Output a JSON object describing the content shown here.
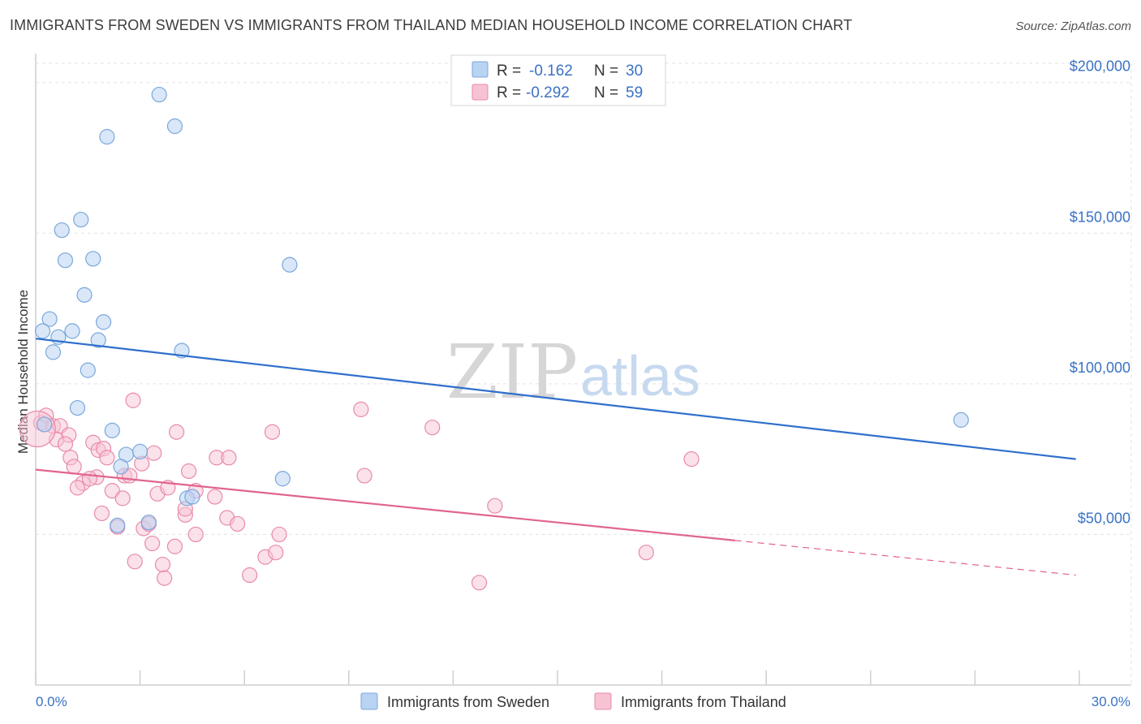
{
  "title": "IMMIGRANTS FROM SWEDEN VS IMMIGRANTS FROM THAILAND MEDIAN HOUSEHOLD INCOME CORRELATION CHART",
  "source": "Source: ZipAtlas.com",
  "watermark": {
    "zip": "ZIP",
    "atlas": "atlas"
  },
  "colors": {
    "sweden_fill": "#b9d3f2",
    "sweden_stroke": "#7aa7dc",
    "sweden_line": "#2f6fcc",
    "thailand_fill": "#f7c3d3",
    "thailand_stroke": "#e88aaa",
    "thailand_line": "#e0648f",
    "tick_text": "#3a72c4",
    "grid": "#e3e3e3"
  },
  "legend": {
    "r_label": "R =",
    "n_label": "N =",
    "sweden": {
      "r": "-0.162",
      "n": "30"
    },
    "thailand": {
      "r": "-0.292",
      "n": "59"
    }
  },
  "chart_data": {
    "type": "scatter",
    "title": "IMMIGRANTS FROM SWEDEN VS IMMIGRANTS FROM THAILAND MEDIAN HOUSEHOLD INCOME CORRELATION CHART",
    "xlabel": "",
    "ylabel": "Median Household Income",
    "xlim": [
      0,
      30
    ],
    "ylim": [
      0,
      208000
    ],
    "x_tick_labels": [
      "0.0%",
      "30.0%"
    ],
    "y_ticks": [
      50000,
      100000,
      150000,
      200000
    ],
    "y_tick_labels": [
      "$50,000",
      "$100,000",
      "$150,000",
      "$200,000"
    ],
    "grid": true,
    "legend_position": "top-center",
    "series": [
      {
        "name": "Immigrants from Sweden",
        "points": [
          [
            3.55,
            196000
          ],
          [
            2.05,
            182000
          ],
          [
            4.0,
            185500
          ],
          [
            1.3,
            154500
          ],
          [
            0.75,
            151000
          ],
          [
            0.85,
            141000
          ],
          [
            1.65,
            141500
          ],
          [
            7.3,
            139500
          ],
          [
            1.4,
            129500
          ],
          [
            0.4,
            121500
          ],
          [
            1.95,
            120500
          ],
          [
            0.2,
            117500
          ],
          [
            1.05,
            117500
          ],
          [
            0.65,
            115500
          ],
          [
            1.8,
            114500
          ],
          [
            0.5,
            110500
          ],
          [
            4.2,
            111000
          ],
          [
            1.5,
            104500
          ],
          [
            1.2,
            92000
          ],
          [
            26.6,
            88000
          ],
          [
            0.25,
            86500
          ],
          [
            2.2,
            84500
          ],
          [
            3.0,
            77500
          ],
          [
            2.6,
            76500
          ],
          [
            2.45,
            72500
          ],
          [
            7.1,
            68500
          ],
          [
            4.35,
            62000
          ],
          [
            4.5,
            62500
          ],
          [
            2.35,
            53000
          ],
          [
            3.25,
            54000
          ]
        ],
        "trend": {
          "x0": 0,
          "y0": 115000,
          "x1": 29.9,
          "y1": 75000
        }
      },
      {
        "name": "Immigrants from Thailand",
        "points": [
          [
            0.15,
            87000
          ],
          [
            0.3,
            89500
          ],
          [
            0.5,
            86000
          ],
          [
            0.7,
            86000
          ],
          [
            0.95,
            83000
          ],
          [
            0.6,
            81500
          ],
          [
            0.85,
            80000
          ],
          [
            1.65,
            80500
          ],
          [
            1.8,
            78000
          ],
          [
            1.95,
            78500
          ],
          [
            2.8,
            94500
          ],
          [
            4.05,
            84000
          ],
          [
            3.4,
            77000
          ],
          [
            3.05,
            73500
          ],
          [
            1.0,
            75500
          ],
          [
            1.1,
            72500
          ],
          [
            2.05,
            75500
          ],
          [
            2.55,
            69500
          ],
          [
            2.7,
            69500
          ],
          [
            1.75,
            69000
          ],
          [
            1.35,
            67000
          ],
          [
            1.55,
            68500
          ],
          [
            1.2,
            65500
          ],
          [
            2.2,
            64500
          ],
          [
            3.5,
            63500
          ],
          [
            3.8,
            65500
          ],
          [
            4.6,
            64500
          ],
          [
            4.4,
            71000
          ],
          [
            5.2,
            75500
          ],
          [
            5.55,
            75500
          ],
          [
            5.15,
            62500
          ],
          [
            6.8,
            84000
          ],
          [
            9.35,
            91500
          ],
          [
            11.4,
            85500
          ],
          [
            9.45,
            69500
          ],
          [
            13.2,
            59500
          ],
          [
            18.85,
            75000
          ],
          [
            1.9,
            57000
          ],
          [
            4.3,
            56500
          ],
          [
            5.5,
            55500
          ],
          [
            5.8,
            53500
          ],
          [
            2.35,
            52500
          ],
          [
            3.1,
            52000
          ],
          [
            3.25,
            53500
          ],
          [
            4.6,
            50000
          ],
          [
            7.0,
            50000
          ],
          [
            3.35,
            47000
          ],
          [
            4.0,
            46000
          ],
          [
            6.6,
            42500
          ],
          [
            6.9,
            44000
          ],
          [
            2.85,
            41000
          ],
          [
            3.65,
            40000
          ],
          [
            3.7,
            35500
          ],
          [
            6.15,
            36500
          ],
          [
            12.75,
            34000
          ],
          [
            17.55,
            44000
          ],
          [
            0.05,
            85000
          ],
          [
            4.3,
            58500
          ],
          [
            2.5,
            62000
          ]
        ],
        "trend": {
          "x0": 0,
          "y0": 71500,
          "x1": 20.1,
          "y1": 48000
        },
        "trend_extension": {
          "x0": 20.1,
          "y0": 48000,
          "x1": 29.9,
          "y1": 36500
        }
      }
    ]
  },
  "bottom_legend": {
    "sweden_label": "Immigrants from Sweden",
    "thailand_label": "Immigrants from Thailand"
  }
}
